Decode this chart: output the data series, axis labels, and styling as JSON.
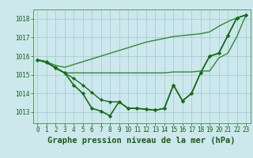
{
  "x": [
    0,
    1,
    2,
    3,
    4,
    5,
    6,
    7,
    8,
    9,
    10,
    11,
    12,
    13,
    14,
    15,
    16,
    17,
    18,
    19,
    20,
    21,
    22,
    23
  ],
  "series": [
    {
      "label": "line_main",
      "y": [
        1015.8,
        1015.7,
        1015.35,
        1015.1,
        1014.45,
        1014.0,
        1013.2,
        1013.05,
        1012.8,
        1013.55,
        1013.2,
        1013.2,
        1013.15,
        1013.1,
        1013.2,
        1014.45,
        1013.6,
        1014.0,
        1015.1,
        1016.0,
        1016.15,
        1017.1,
        1018.05,
        1018.2
      ],
      "color": "#1a6b1a",
      "linewidth": 1.2,
      "marker": "D",
      "markersize": 2.2
    },
    {
      "label": "line_top",
      "y": [
        1015.8,
        1015.7,
        1015.5,
        1015.4,
        1015.55,
        1015.7,
        1015.85,
        1016.0,
        1016.15,
        1016.3,
        1016.45,
        1016.6,
        1016.75,
        1016.85,
        1016.95,
        1017.05,
        1017.1,
        1017.15,
        1017.2,
        1017.3,
        1017.6,
        1017.85,
        1018.05,
        1018.2
      ],
      "color": "#2d8b2d",
      "linewidth": 1.0,
      "marker": null,
      "markersize": 0
    },
    {
      "label": "line_flat",
      "y": [
        1015.8,
        1015.65,
        1015.35,
        1015.1,
        1015.1,
        1015.1,
        1015.1,
        1015.1,
        1015.1,
        1015.1,
        1015.1,
        1015.1,
        1015.1,
        1015.1,
        1015.1,
        1015.15,
        1015.15,
        1015.15,
        1015.2,
        1015.2,
        1015.9,
        1016.15,
        1017.05,
        1018.2
      ],
      "color": "#2d8b2d",
      "linewidth": 1.0,
      "marker": null,
      "markersize": 0
    },
    {
      "label": "line_mid",
      "y": [
        1015.8,
        1015.65,
        1015.4,
        1015.1,
        1014.8,
        1014.45,
        1014.05,
        1013.65,
        1013.55,
        1013.55,
        1013.2,
        1013.2,
        1013.15,
        1013.1,
        1013.2,
        1014.45,
        1013.6,
        1014.0,
        1015.1,
        1016.0,
        1016.15,
        1017.1,
        1018.05,
        1018.2
      ],
      "color": "#1a6b1a",
      "linewidth": 1.0,
      "marker": "D",
      "markersize": 2.0
    }
  ],
  "ylim": [
    1012.4,
    1018.5
  ],
  "yticks": [
    1013,
    1014,
    1015,
    1016,
    1017,
    1018
  ],
  "xlim": [
    -0.5,
    23.5
  ],
  "xticks": [
    0,
    1,
    2,
    3,
    4,
    5,
    6,
    7,
    8,
    9,
    10,
    11,
    12,
    13,
    14,
    15,
    16,
    17,
    18,
    19,
    20,
    21,
    22,
    23
  ],
  "xlabel": "Graphe pression niveau de la mer (hPa)",
  "bg_color": "#cce8ec",
  "grid_color": "#a0c8d0",
  "text_color": "#1a5c1a",
  "axis_color": "#4a8a4a",
  "xlabel_fontsize": 7.5,
  "tick_fontsize": 5.5
}
